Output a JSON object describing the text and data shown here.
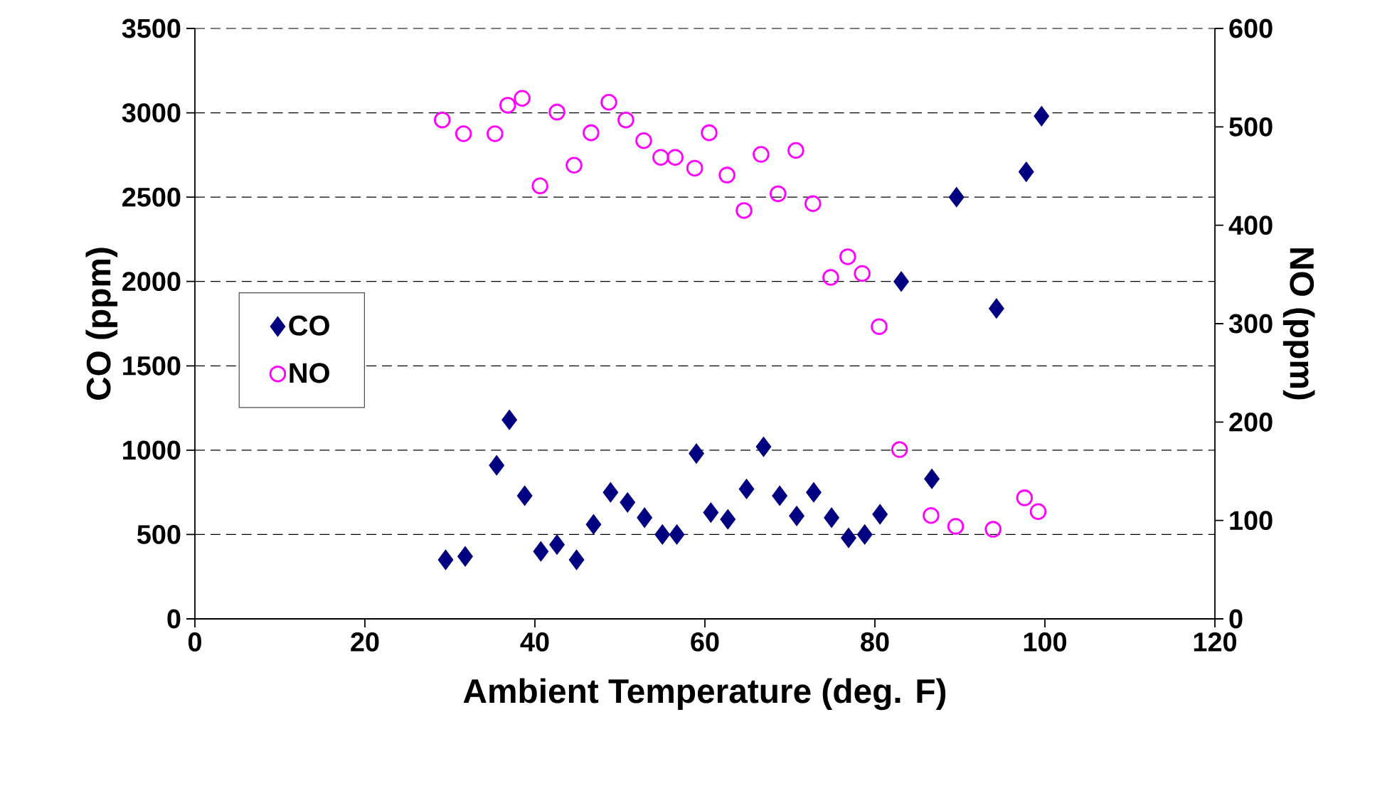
{
  "chart_data": {
    "type": "scatter",
    "xlabel": "Ambient Temperature (deg. F)",
    "ylabel": "CO (ppm)",
    "y2label": "NO (ppm)",
    "xlim": [
      0,
      120
    ],
    "xticks": [
      0,
      20,
      40,
      60,
      80,
      100,
      120
    ],
    "ylim": [
      0,
      3500
    ],
    "yticks": [
      0,
      500,
      1000,
      1500,
      2000,
      2500,
      3000,
      3500
    ],
    "y2lim": [
      0,
      600
    ],
    "y2ticks": [
      0,
      100,
      200,
      300,
      400,
      500,
      600
    ],
    "grid": "y",
    "legend": "left",
    "series": [
      {
        "name": "CO",
        "color": "#000080",
        "marker": "diamond",
        "x": [
          29.5,
          31.8,
          35.5,
          37,
          38.8,
          40.7,
          42.6,
          44.9,
          46.9,
          48.9,
          50.9,
          52.9,
          55,
          56.7,
          59,
          60.7,
          62.7,
          64.9,
          66.9,
          68.8,
          70.8,
          72.8,
          74.9,
          76.9,
          78.8,
          80.6,
          83.1,
          86.7,
          89.6,
          94.3,
          97.8,
          99.6
        ],
        "values": [
          350,
          370,
          910,
          1180,
          730,
          400,
          440,
          350,
          560,
          750,
          690,
          600,
          500,
          500,
          980,
          630,
          590,
          770,
          1020,
          730,
          610,
          750,
          600,
          480,
          500,
          620,
          2000,
          830,
          2500,
          1840,
          2650,
          2980
        ]
      },
      {
        "name": "NO",
        "color": "#ff00ff",
        "marker": "circle",
        "axis": "y2",
        "x": [
          29.1,
          31.6,
          35.3,
          36.8,
          38.5,
          40.6,
          42.6,
          44.6,
          46.6,
          48.7,
          50.7,
          52.8,
          54.8,
          56.5,
          58.8,
          60.5,
          62.6,
          64.6,
          66.6,
          68.6,
          70.7,
          72.7,
          74.8,
          76.8,
          78.5,
          80.5,
          82.9,
          86.6,
          89.5,
          93.9,
          97.6,
          99.2
        ],
        "values": [
          507,
          493,
          493,
          522,
          529,
          440,
          515,
          461,
          494,
          525,
          507,
          486,
          469,
          469,
          458,
          494,
          451,
          415,
          472,
          432,
          476,
          422,
          347,
          368,
          351,
          297,
          172,
          105,
          94,
          91,
          123,
          109
        ]
      }
    ]
  }
}
